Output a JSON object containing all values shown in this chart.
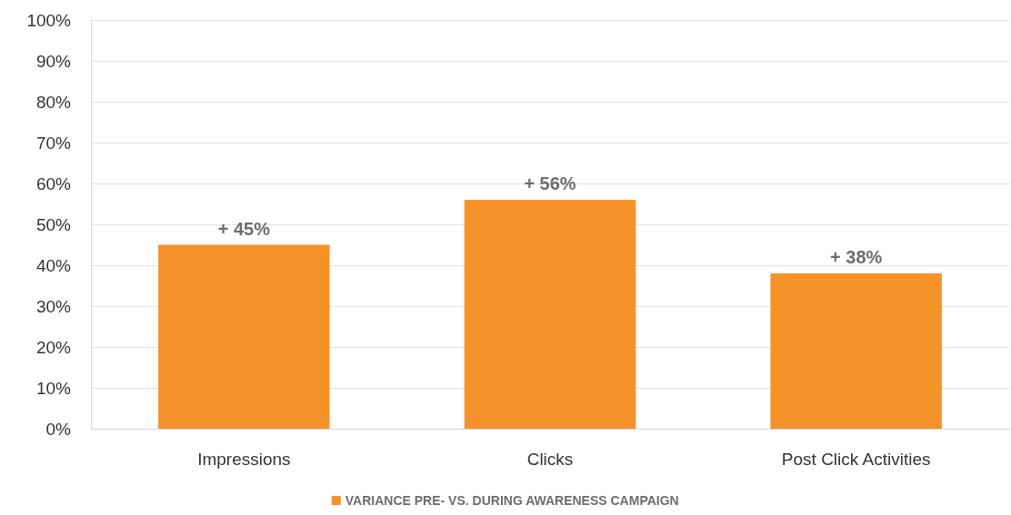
{
  "chart_data": {
    "type": "bar",
    "categories": [
      "Impressions",
      "Clicks",
      "Post Click Activities"
    ],
    "series": [
      {
        "name": "VARIANCE PRE- VS. DURING AWARENESS CAMPAIGN",
        "color": "#f5922a",
        "values": [
          45,
          56,
          38
        ],
        "value_labels": [
          "+ 45%",
          "+ 56%",
          "+ 38%"
        ]
      }
    ],
    "ylim": [
      0,
      100
    ],
    "yticks": [
      {
        "value": 0,
        "label": "0%"
      },
      {
        "value": 10,
        "label": "10%"
      },
      {
        "value": 20,
        "label": "20%"
      },
      {
        "value": 30,
        "label": "30%"
      },
      {
        "value": 40,
        "label": "40%"
      },
      {
        "value": 50,
        "label": "50%"
      },
      {
        "value": 60,
        "label": "60%"
      },
      {
        "value": 70,
        "label": "70%"
      },
      {
        "value": 80,
        "label": "80%"
      },
      {
        "value": 90,
        "label": "90%"
      },
      {
        "value": 100,
        "label": "100%"
      }
    ],
    "grid": "y",
    "legend": "bottom"
  }
}
